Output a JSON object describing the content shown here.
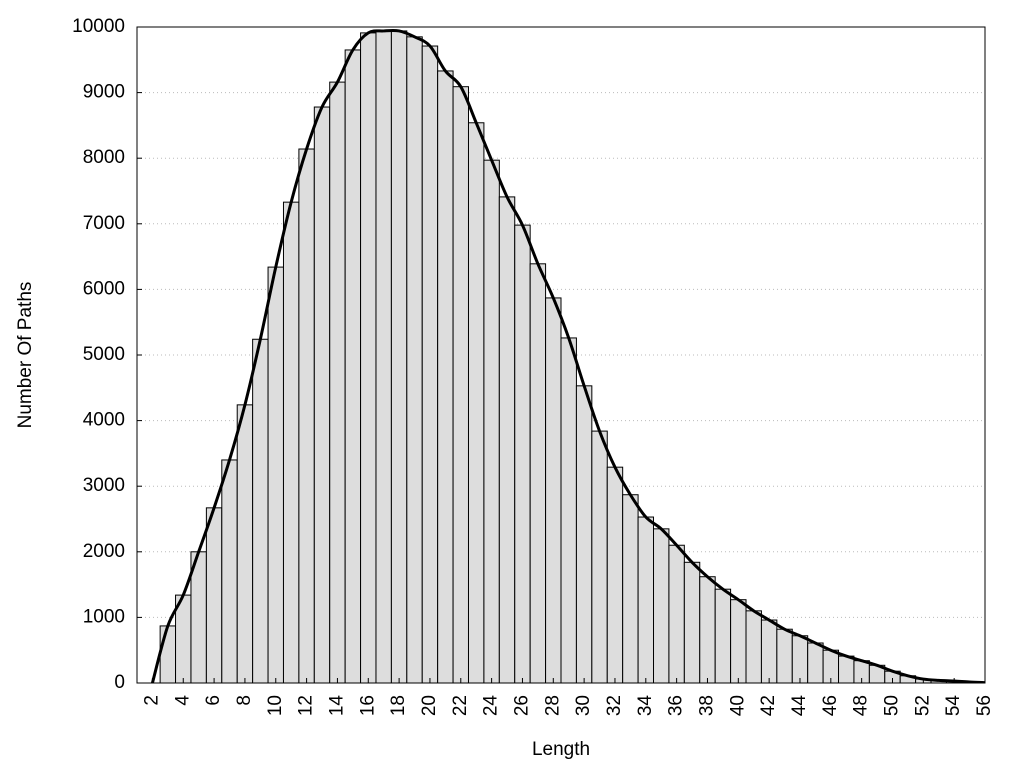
{
  "chart_data": {
    "type": "bar",
    "line_overlay": true,
    "x_label": "Length",
    "y_label": "Number Of Paths",
    "x": [
      2,
      3,
      4,
      5,
      6,
      7,
      8,
      9,
      10,
      11,
      12,
      13,
      14,
      15,
      16,
      17,
      18,
      19,
      20,
      21,
      22,
      23,
      24,
      25,
      26,
      27,
      28,
      29,
      30,
      31,
      32,
      33,
      34,
      35,
      36,
      37,
      38,
      39,
      40,
      41,
      42,
      43,
      44,
      45,
      46,
      47,
      48,
      49,
      50,
      51,
      52,
      53,
      54,
      55,
      56
    ],
    "values": [
      0,
      870,
      1340,
      2000,
      2670,
      3400,
      4240,
      5240,
      6340,
      7330,
      8140,
      8780,
      9160,
      9650,
      9910,
      9940,
      9940,
      9850,
      9710,
      9330,
      9090,
      8540,
      7970,
      7410,
      6980,
      6390,
      5870,
      5260,
      4530,
      3840,
      3290,
      2870,
      2530,
      2350,
      2100,
      1840,
      1620,
      1430,
      1270,
      1100,
      960,
      820,
      720,
      610,
      500,
      410,
      340,
      270,
      180,
      110,
      60,
      40,
      30,
      15,
      5
    ],
    "bar_color": "#dddddd",
    "line_color": "#000000",
    "xlim": [
      1,
      56
    ],
    "xticks": [
      2,
      4,
      6,
      8,
      10,
      12,
      14,
      16,
      18,
      20,
      22,
      24,
      26,
      28,
      30,
      32,
      34,
      36,
      38,
      40,
      42,
      44,
      46,
      48,
      50,
      52,
      54,
      56
    ],
    "ylim": [
      0,
      10000
    ],
    "yticks": [
      0,
      1000,
      2000,
      3000,
      4000,
      5000,
      6000,
      7000,
      8000,
      9000,
      10000
    ],
    "grid": true
  }
}
